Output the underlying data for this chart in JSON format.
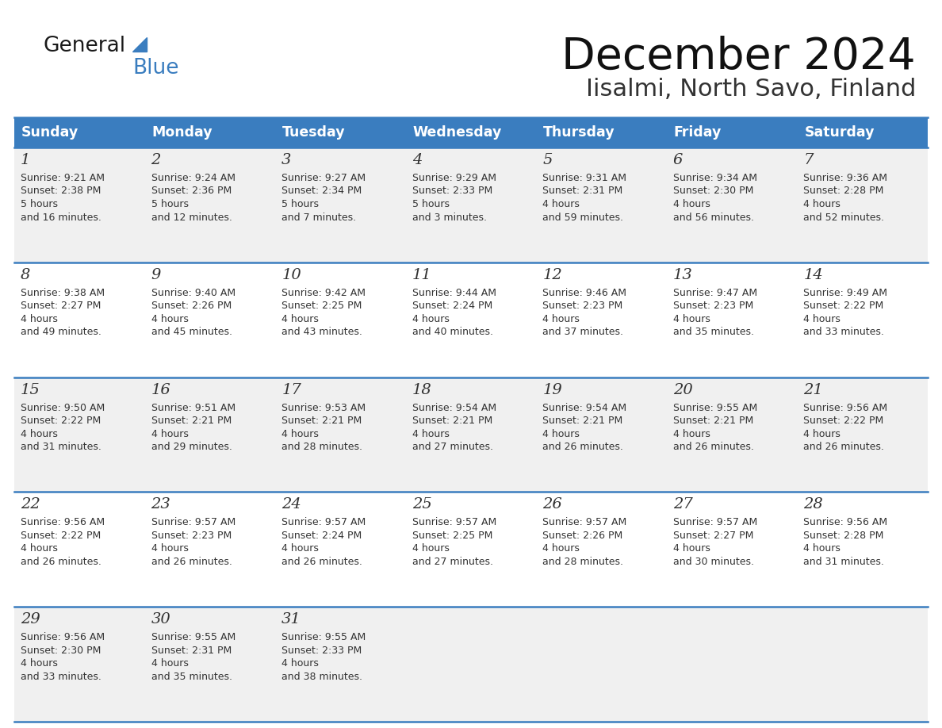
{
  "title": "December 2024",
  "subtitle": "Iisalmi, North Savo, Finland",
  "days_of_week": [
    "Sunday",
    "Monday",
    "Tuesday",
    "Wednesday",
    "Thursday",
    "Friday",
    "Saturday"
  ],
  "header_bg": "#3a7dbf",
  "header_text": "#ffffff",
  "row_bg_odd": "#f0f0f0",
  "row_bg_even": "#ffffff",
  "day_num_color": "#333333",
  "text_color": "#333333",
  "line_color": "#3a7dbf",
  "calendar": [
    [
      {
        "day": 1,
        "sunrise": "9:21 AM",
        "sunset": "2:38 PM",
        "daylight": "5 hours\nand 16 minutes."
      },
      {
        "day": 2,
        "sunrise": "9:24 AM",
        "sunset": "2:36 PM",
        "daylight": "5 hours\nand 12 minutes."
      },
      {
        "day": 3,
        "sunrise": "9:27 AM",
        "sunset": "2:34 PM",
        "daylight": "5 hours\nand 7 minutes."
      },
      {
        "day": 4,
        "sunrise": "9:29 AM",
        "sunset": "2:33 PM",
        "daylight": "5 hours\nand 3 minutes."
      },
      {
        "day": 5,
        "sunrise": "9:31 AM",
        "sunset": "2:31 PM",
        "daylight": "4 hours\nand 59 minutes."
      },
      {
        "day": 6,
        "sunrise": "9:34 AM",
        "sunset": "2:30 PM",
        "daylight": "4 hours\nand 56 minutes."
      },
      {
        "day": 7,
        "sunrise": "9:36 AM",
        "sunset": "2:28 PM",
        "daylight": "4 hours\nand 52 minutes."
      }
    ],
    [
      {
        "day": 8,
        "sunrise": "9:38 AM",
        "sunset": "2:27 PM",
        "daylight": "4 hours\nand 49 minutes."
      },
      {
        "day": 9,
        "sunrise": "9:40 AM",
        "sunset": "2:26 PM",
        "daylight": "4 hours\nand 45 minutes."
      },
      {
        "day": 10,
        "sunrise": "9:42 AM",
        "sunset": "2:25 PM",
        "daylight": "4 hours\nand 43 minutes."
      },
      {
        "day": 11,
        "sunrise": "9:44 AM",
        "sunset": "2:24 PM",
        "daylight": "4 hours\nand 40 minutes."
      },
      {
        "day": 12,
        "sunrise": "9:46 AM",
        "sunset": "2:23 PM",
        "daylight": "4 hours\nand 37 minutes."
      },
      {
        "day": 13,
        "sunrise": "9:47 AM",
        "sunset": "2:23 PM",
        "daylight": "4 hours\nand 35 minutes."
      },
      {
        "day": 14,
        "sunrise": "9:49 AM",
        "sunset": "2:22 PM",
        "daylight": "4 hours\nand 33 minutes."
      }
    ],
    [
      {
        "day": 15,
        "sunrise": "9:50 AM",
        "sunset": "2:22 PM",
        "daylight": "4 hours\nand 31 minutes."
      },
      {
        "day": 16,
        "sunrise": "9:51 AM",
        "sunset": "2:21 PM",
        "daylight": "4 hours\nand 29 minutes."
      },
      {
        "day": 17,
        "sunrise": "9:53 AM",
        "sunset": "2:21 PM",
        "daylight": "4 hours\nand 28 minutes."
      },
      {
        "day": 18,
        "sunrise": "9:54 AM",
        "sunset": "2:21 PM",
        "daylight": "4 hours\nand 27 minutes."
      },
      {
        "day": 19,
        "sunrise": "9:54 AM",
        "sunset": "2:21 PM",
        "daylight": "4 hours\nand 26 minutes."
      },
      {
        "day": 20,
        "sunrise": "9:55 AM",
        "sunset": "2:21 PM",
        "daylight": "4 hours\nand 26 minutes."
      },
      {
        "day": 21,
        "sunrise": "9:56 AM",
        "sunset": "2:22 PM",
        "daylight": "4 hours\nand 26 minutes."
      }
    ],
    [
      {
        "day": 22,
        "sunrise": "9:56 AM",
        "sunset": "2:22 PM",
        "daylight": "4 hours\nand 26 minutes."
      },
      {
        "day": 23,
        "sunrise": "9:57 AM",
        "sunset": "2:23 PM",
        "daylight": "4 hours\nand 26 minutes."
      },
      {
        "day": 24,
        "sunrise": "9:57 AM",
        "sunset": "2:24 PM",
        "daylight": "4 hours\nand 26 minutes."
      },
      {
        "day": 25,
        "sunrise": "9:57 AM",
        "sunset": "2:25 PM",
        "daylight": "4 hours\nand 27 minutes."
      },
      {
        "day": 26,
        "sunrise": "9:57 AM",
        "sunset": "2:26 PM",
        "daylight": "4 hours\nand 28 minutes."
      },
      {
        "day": 27,
        "sunrise": "9:57 AM",
        "sunset": "2:27 PM",
        "daylight": "4 hours\nand 30 minutes."
      },
      {
        "day": 28,
        "sunrise": "9:56 AM",
        "sunset": "2:28 PM",
        "daylight": "4 hours\nand 31 minutes."
      }
    ],
    [
      {
        "day": 29,
        "sunrise": "9:56 AM",
        "sunset": "2:30 PM",
        "daylight": "4 hours\nand 33 minutes."
      },
      {
        "day": 30,
        "sunrise": "9:55 AM",
        "sunset": "2:31 PM",
        "daylight": "4 hours\nand 35 minutes."
      },
      {
        "day": 31,
        "sunrise": "9:55 AM",
        "sunset": "2:33 PM",
        "daylight": "4 hours\nand 38 minutes."
      },
      null,
      null,
      null,
      null
    ]
  ]
}
